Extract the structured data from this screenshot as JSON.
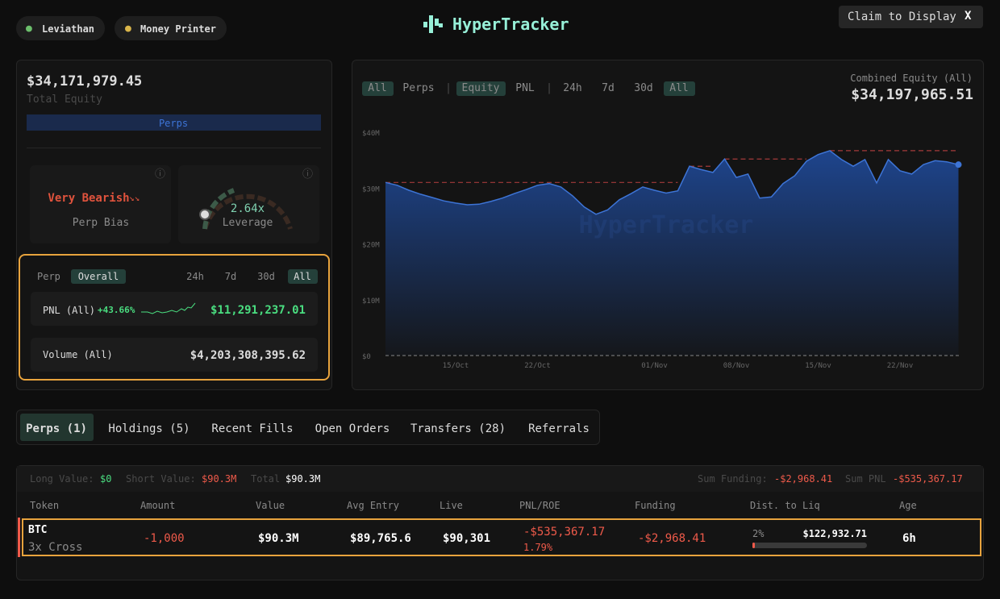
{
  "header": {
    "badges": [
      "Leviathan",
      "Money Printer"
    ],
    "logo": "HyperTracker",
    "claim_button": "Claim to Display",
    "close": "X"
  },
  "account": {
    "equity": "$34,171,979.45",
    "equity_label": "Total Equity",
    "bar_label": "Perps",
    "bias": "Very Bearish",
    "bias_label": "Perp Bias",
    "leverage": "2.64x",
    "leverage_label": "Leverage",
    "pnl_tabs": [
      "Perp",
      "Overall"
    ],
    "periods": [
      "24h",
      "7d",
      "30d",
      "All"
    ],
    "pnl_label": "PNL (All)",
    "pnl_pct": "+43.66%",
    "pnl": "$11,291,237.01",
    "volume_label": "Volume (All)",
    "volume": "$4,203,308,395.62"
  },
  "chart_panel": {
    "filters": [
      "All",
      "Perps",
      "|",
      "Equity",
      "PNL",
      "|",
      "24h",
      "7d",
      "30d",
      "All"
    ],
    "combined_label": "Combined Equity (All)",
    "combined_value": "$34,197,965.51"
  },
  "chart_data": {
    "type": "area",
    "watermark": "HyperTracker",
    "color": "#3d74d6",
    "categories": [
      null,
      null,
      null,
      null,
      null,
      null,
      "15/Oct",
      null,
      null,
      null,
      null,
      null,
      null,
      "22/Oct",
      null,
      null,
      null,
      null,
      null,
      null,
      null,
      null,
      null,
      "01/Nov",
      null,
      null,
      null,
      null,
      null,
      null,
      "08/Nov",
      null,
      null,
      null,
      null,
      null,
      null,
      "15/Nov",
      null,
      null,
      null,
      null,
      null,
      null,
      "22/Nov",
      null,
      null,
      null,
      null,
      null
    ],
    "values": [
      31000000,
      30500000,
      29600000,
      28900000,
      28300000,
      27700000,
      27300000,
      27000000,
      27100000,
      27600000,
      28200000,
      29000000,
      29700000,
      30500000,
      30800000,
      30200000,
      28600000,
      26600000,
      25300000,
      26100000,
      27900000,
      29000000,
      30200000,
      29600000,
      29100000,
      29500000,
      33900000,
      33300000,
      32800000,
      35200000,
      31900000,
      32500000,
      28200000,
      28400000,
      30800000,
      32200000,
      34800000,
      36000000,
      36700000,
      35100000,
      33900000,
      35100000,
      30900000,
      35100000,
      33100000,
      32500000,
      34200000,
      34900000,
      34700000,
      34200000
    ],
    "ylim": [
      0,
      40000000
    ],
    "yticks": [
      {
        "value": 0,
        "label": "$0"
      },
      {
        "value": 10000000,
        "label": "$10M"
      },
      {
        "value": 20000000,
        "label": "$20M"
      },
      {
        "value": 30000000,
        "label": "$30M"
      },
      {
        "value": 40000000,
        "label": "$40M"
      }
    ],
    "grid": false
  },
  "tabs": [
    "Perps (1)",
    "Holdings (5)",
    "Recent Fills",
    "Open Orders",
    "Transfers (28)",
    "Referrals"
  ],
  "positions": {
    "summary": [
      {
        "label": "Long Value:",
        "value": "$0"
      },
      {
        "label": "Short Value:",
        "value": "$90.3M"
      },
      {
        "label": "Total",
        "value": "$90.3M"
      },
      {
        "label": "Sum Funding:",
        "value": "-$2,968.41"
      },
      {
        "label": "Sum PNL",
        "value": "-$535,367.17"
      }
    ],
    "columns": [
      "Token",
      "Amount",
      "Value",
      "Avg Entry",
      "Live",
      "PNL/ROE",
      "Funding",
      "Dist. to Liq",
      "Age"
    ],
    "rows": [
      {
        "token": "BTC",
        "mode": "3x Cross",
        "amount": "-1,000",
        "value": "$90.3M",
        "avg_entry": "$89,765.6",
        "live": "$90,301",
        "pnl": "-$535,367.17",
        "roe": "1.79%",
        "funding": "-$2,968.41",
        "liq_pct": "2%",
        "liq_price": "$122,932.71",
        "age": "6h"
      }
    ]
  }
}
